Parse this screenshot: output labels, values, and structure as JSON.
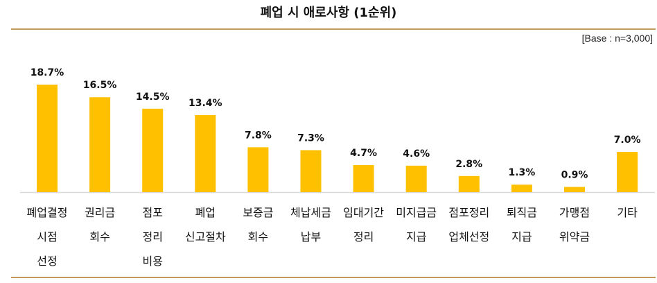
{
  "chart_data": {
    "type": "bar",
    "title": "폐업 시 애로사항 (1순위)",
    "base_note": "[Base : n=3,000]",
    "categories": [
      [
        "폐업결정",
        "시점",
        "선정"
      ],
      [
        "권리금",
        "회수"
      ],
      [
        "점포",
        "정리",
        "비용"
      ],
      [
        "폐업",
        "신고절차"
      ],
      [
        "보증금",
        "회수"
      ],
      [
        "체납세금",
        "납부"
      ],
      [
        "임대기간",
        "정리"
      ],
      [
        "미지급금",
        "지급"
      ],
      [
        "점포정리",
        "업체선정"
      ],
      [
        "퇴직금",
        "지급"
      ],
      [
        "가맹점",
        "위약금"
      ],
      [
        "기타"
      ]
    ],
    "values": [
      18.7,
      16.5,
      14.5,
      13.4,
      7.8,
      7.3,
      4.7,
      4.6,
      2.8,
      1.3,
      0.9,
      7.0
    ],
    "data_labels": [
      "18.7%",
      "16.5%",
      "14.5%",
      "13.4%",
      "7.8%",
      "7.3%",
      "4.7%",
      "4.6%",
      "2.8%",
      "1.3%",
      "0.9%",
      "7.0%"
    ],
    "bar_color": "#ffc000",
    "ylim": [
      0,
      20
    ],
    "grid": false,
    "legend": "none"
  }
}
